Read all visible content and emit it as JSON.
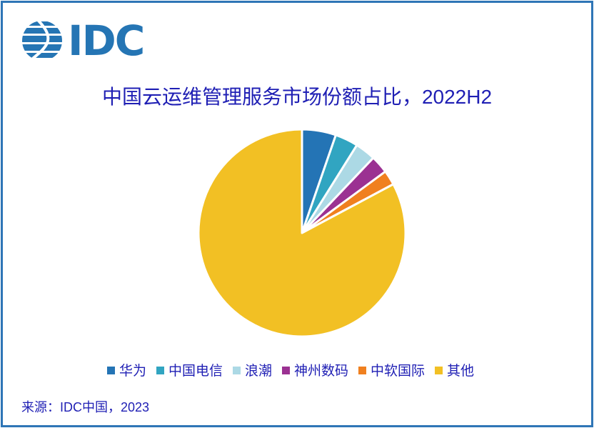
{
  "frame": {
    "border_color": "#2E75B6",
    "background": "#FFFFFF"
  },
  "logo": {
    "text": "IDC",
    "color": "#2575B4"
  },
  "title": {
    "text": "中国云运维管理服务市场份额占比，2022H2",
    "color": "#1F1FB4"
  },
  "chart_data": {
    "type": "pie",
    "title": "中国云运维管理服务市场份额占比，2022H2",
    "start_angle_deg": 0,
    "direction": "clockwise",
    "donut": false,
    "data_labels": false,
    "slice_border_color": "#FFFFFF",
    "legend_position": "bottom",
    "segments": [
      {
        "label": "华为",
        "value_pct": 5.3,
        "color": "#2474B5"
      },
      {
        "label": "中国电信",
        "value_pct": 3.6,
        "color": "#31A5C1"
      },
      {
        "label": "浪潮",
        "value_pct": 3.2,
        "color": "#ACD9E5"
      },
      {
        "label": "神州数码",
        "value_pct": 2.8,
        "color": "#9B3192"
      },
      {
        "label": "中软国际",
        "value_pct": 2.3,
        "color": "#F0801F"
      },
      {
        "label": "其他",
        "value_pct": 82.8,
        "color": "#F2C024"
      }
    ]
  },
  "legend": {
    "text_color": "#1F1FB4"
  },
  "source": {
    "text": "来源：IDC中国，2023",
    "color": "#1F1FB4"
  }
}
